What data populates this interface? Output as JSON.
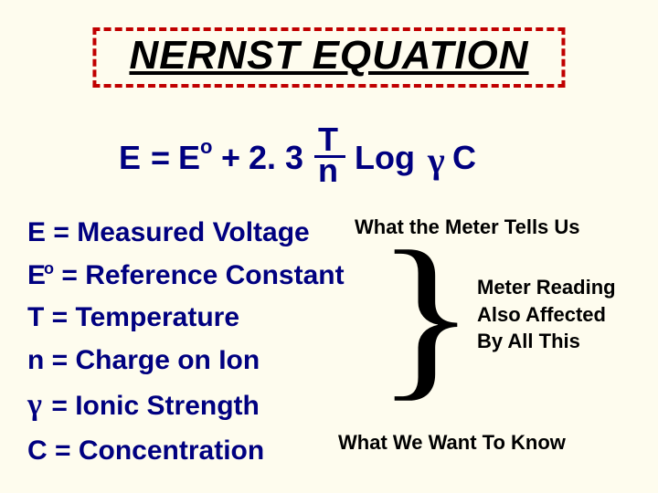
{
  "title": "NERNST EQUATION",
  "colors": {
    "background": "#fefcee",
    "accent_navy": "#000080",
    "border_red": "#c00000",
    "text_black": "#000000"
  },
  "equation": {
    "E": "E",
    "eq": "=",
    "E2": "E",
    "sup": "o",
    "plus": "+",
    "const": "2. 3",
    "T": "T",
    "n": "n",
    "log": "Log",
    "gamma": "γ",
    "C": "C"
  },
  "definitions": [
    {
      "term": "E",
      "sup": "",
      "label": " = Measured Voltage"
    },
    {
      "term": "E",
      "sup": "o",
      "label": " = Reference Constant"
    },
    {
      "term": "T",
      "sup": "",
      "label": " = Temperature"
    },
    {
      "term": "n",
      "sup": "",
      "label": " = Charge on Ion"
    },
    {
      "term": "γ",
      "sup": "",
      "label": " = Ionic Strength",
      "gamma": true
    },
    {
      "term": "C",
      "sup": "",
      "label": " = Concentration"
    }
  ],
  "annotations": {
    "meter_tells": "What the Meter Tells Us",
    "also_line1": "Meter Reading",
    "also_line2": "Also Affected",
    "also_line3": "By All This",
    "want_to_know": "What We Want To Know"
  },
  "brace": "}"
}
